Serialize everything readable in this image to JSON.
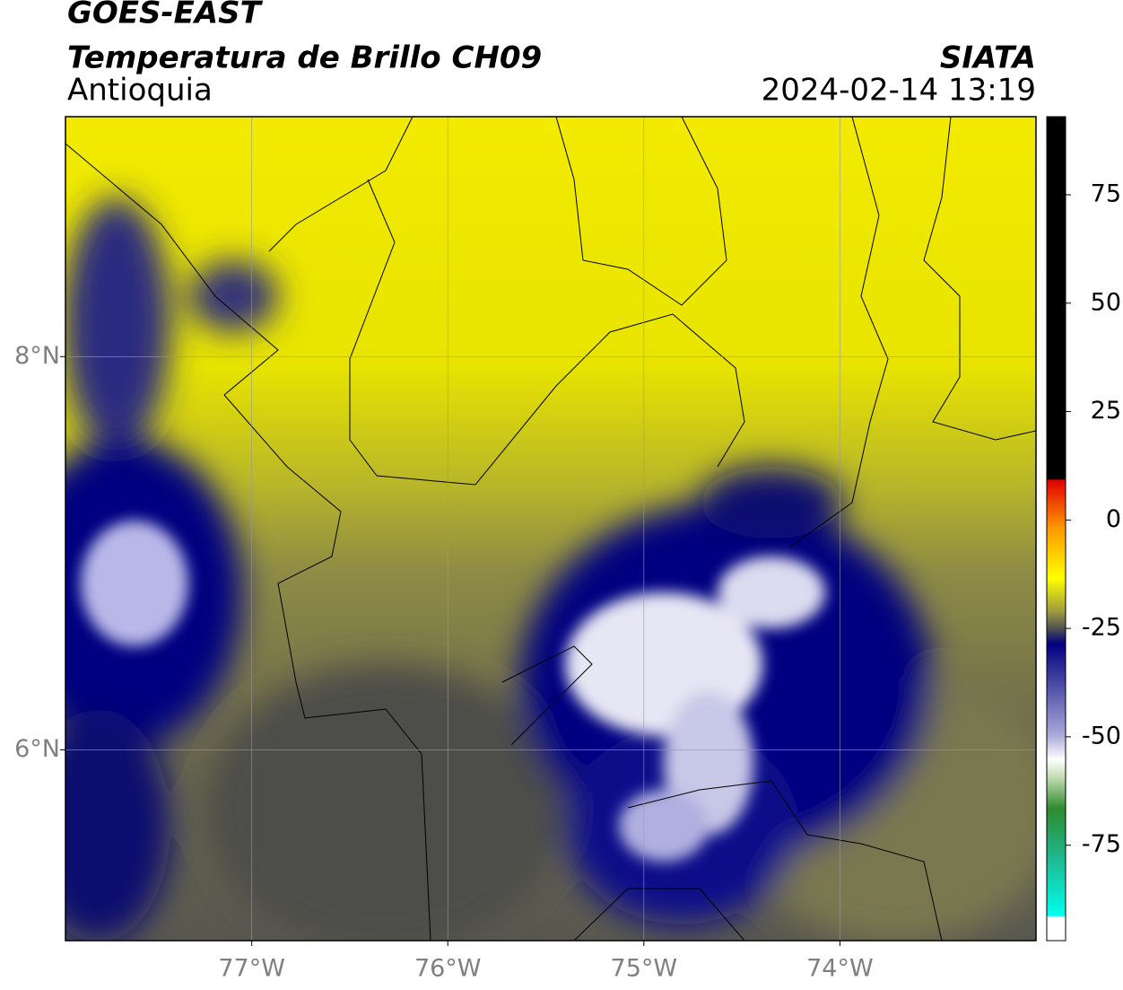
{
  "header": {
    "satellite": "GOES-EAST",
    "product": "Temperatura de Brillo CH09",
    "region": "Antioquia",
    "agency": "SIATA",
    "datetime": "2024-02-14 13:19"
  },
  "map": {
    "lon_range": [
      -77.95,
      -73.0
    ],
    "lat_range": [
      5.03,
      9.22
    ],
    "lon_ticks": [
      {
        "value": -77,
        "label": "77°W"
      },
      {
        "value": -76,
        "label": "76°W"
      },
      {
        "value": -75,
        "label": "75°W"
      },
      {
        "value": -74,
        "label": "74°W"
      }
    ],
    "lat_ticks": [
      {
        "value": 8,
        "label": "8°N"
      },
      {
        "value": 6,
        "label": "6°N"
      }
    ],
    "grid": true
  },
  "colorbar": {
    "range": [
      -97,
      93
    ],
    "ticks": [
      75,
      50,
      25,
      0,
      -25,
      -50,
      -75
    ]
  }
}
